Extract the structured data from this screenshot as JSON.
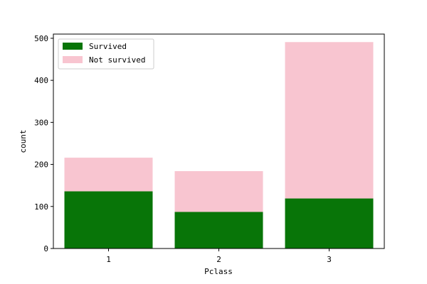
{
  "chart_data": {
    "type": "bar",
    "stacked": true,
    "title": "",
    "xlabel": "Pclass",
    "ylabel": "count",
    "categories": [
      "1",
      "2",
      "3"
    ],
    "series": [
      {
        "name": "Survived",
        "color": "#087508",
        "values": [
          136,
          87,
          119
        ]
      },
      {
        "name": "Not survived",
        "color": "#f8c5d0",
        "values": [
          80,
          97,
          372
        ]
      }
    ],
    "ylim": [
      0,
      510
    ],
    "yticks": [
      0,
      100,
      200,
      300,
      400,
      500
    ],
    "legend_position": "top-left",
    "grid": false
  }
}
